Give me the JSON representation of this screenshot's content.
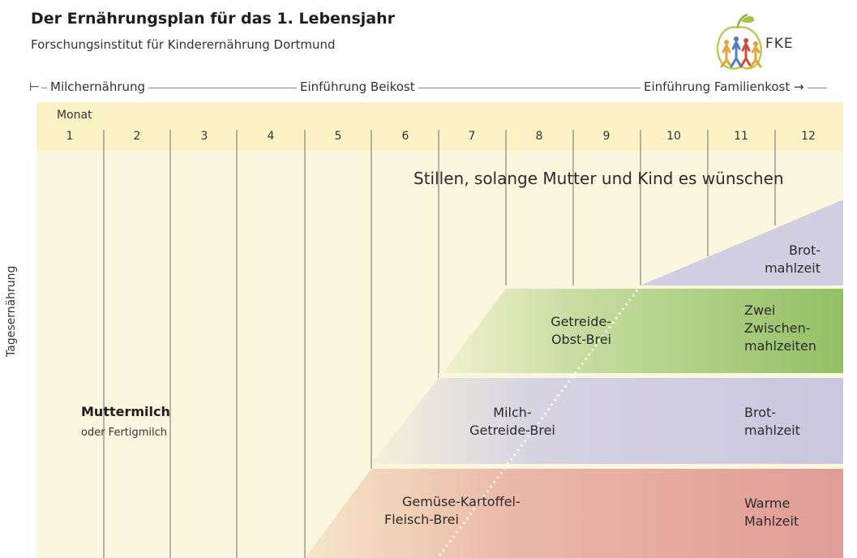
{
  "header": {
    "title": "Der Ernährungsplan für das 1. Lebensjahr",
    "subtitle": "Forschungsinstitut für Kinderernährung Dortmund",
    "logo_text": "FKE"
  },
  "phases": [
    {
      "label": "Milchernährung"
    },
    {
      "label": "Einführung Beikost"
    },
    {
      "label": "Einführung Familienkost →"
    }
  ],
  "phase_start_marker": "⊢",
  "axis": {
    "month_title": "Monat",
    "months": [
      "1",
      "2",
      "3",
      "4",
      "5",
      "6",
      "7",
      "8",
      "9",
      "10",
      "11",
      "12"
    ],
    "y_label": "Tagesernährung"
  },
  "regions": {
    "stillen": "Stillen, solange Mutter und Kind es wünschen",
    "muttermilch": "Muttermilch",
    "fertigmilch": "oder Fertigmilch",
    "brot1_line1": "Brot-",
    "brot1_line2": "mahlzeit",
    "getreide_obst_line1": "Getreide-",
    "getreide_obst_line2": "Obst-Brei",
    "zwei_line1": "Zwei",
    "zwei_line2": "Zwischen-",
    "zwei_line3": "mahlzeiten",
    "milch_getreide_line1": "Milch-",
    "milch_getreide_line2": "Getreide-Brei",
    "brot2_line1": "Brot-",
    "brot2_line2": "mahlzeit",
    "gemuese_line1": "Gemüse-Kartoffel-",
    "gemuese_line2": "Fleisch-Brei",
    "warme_line1": "Warme",
    "warme_line2": "Mahlzeit"
  },
  "colors": {
    "background_light": "#fbf6d6",
    "header_band": "#fbf4c8",
    "lavender": "#cfcbe0",
    "green": "#9fc66e",
    "red": "#e3a19a"
  }
}
